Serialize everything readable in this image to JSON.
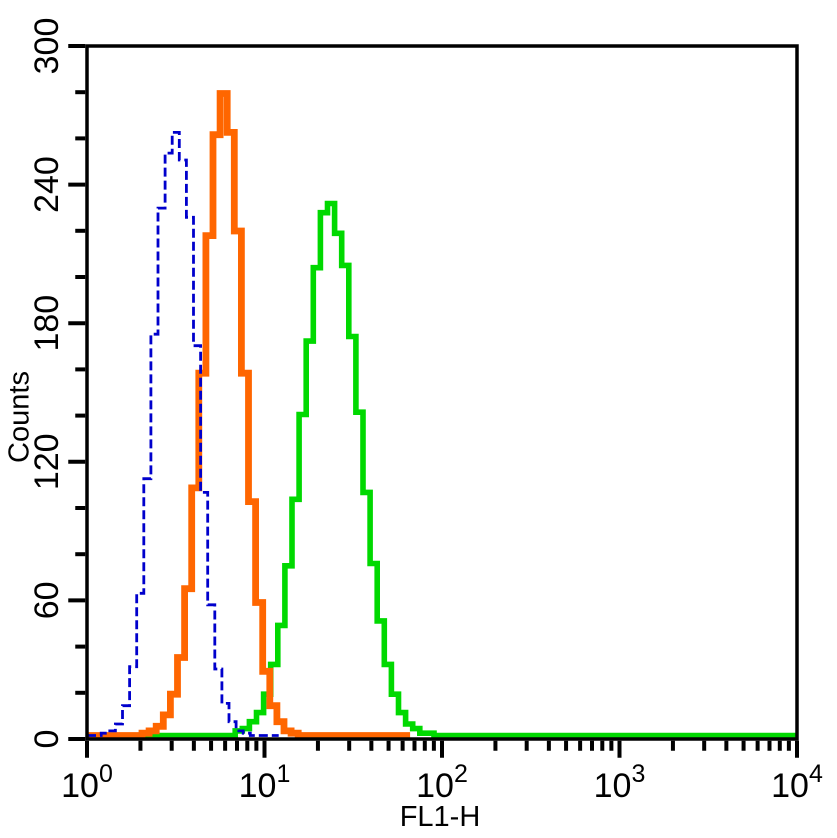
{
  "figure": {
    "kind": "flow-cytometry-histogram-overlay",
    "background": "#ffffff",
    "axis_color": "#000000"
  },
  "chart_data": {
    "type": "area",
    "subtype": "step-histogram-overlay",
    "title": "",
    "xlabel": "FL1-H",
    "ylabel": "Counts",
    "x_scale": "log10",
    "x_range": [
      1,
      10000
    ],
    "x_range_log": [
      0,
      4
    ],
    "ylim": [
      0,
      300
    ],
    "y_major_ticks": [
      0,
      60,
      120,
      180,
      240,
      300
    ],
    "y_minor_tick_step": 20,
    "x_major_exponents": [
      0,
      1,
      2,
      3,
      4
    ],
    "x_tick_label_base": "10",
    "x_minor_ticks_per_decade": [
      2,
      3,
      4,
      5,
      6,
      7,
      8,
      9
    ],
    "grid": false,
    "legend": "none",
    "peaks_summary": [
      {
        "series": "blue-dashed",
        "peak_x": 3.2,
        "peak_counts": 263
      },
      {
        "series": "orange",
        "peak_x": 5.9,
        "peak_counts": 280
      },
      {
        "series": "green",
        "peak_x": 23.7,
        "peak_counts": 232
      }
    ],
    "series": [
      {
        "name": "green",
        "color": "#00d900",
        "line_width": 5.6,
        "dash": null,
        "bin_width_log": 0.04,
        "bins_start_log": 0.855,
        "baseline_log": [
          0,
          4.0
        ],
        "counts": [
          2,
          3,
          6,
          10,
          18,
          31,
          48,
          74,
          103,
          140,
          172,
          204,
          228,
          232,
          219,
          205,
          174,
          141,
          106,
          75,
          50,
          31,
          18,
          10,
          5,
          3,
          1,
          1
        ]
      },
      {
        "name": "orange",
        "color": "#ff6600",
        "line_width": 6.8,
        "dash": null,
        "bin_width_log": 0.04,
        "bins_start_log": 0.33,
        "baseline_log": [
          0,
          1.82
        ],
        "counts": [
          1,
          2,
          4,
          9,
          18,
          34,
          64,
          108,
          158,
          218,
          262,
          280,
          263,
          220,
          158,
          102,
          58,
          28,
          13,
          6,
          2,
          1
        ]
      },
      {
        "name": "blue-dashed",
        "color": "#0000cc",
        "line_width": 2.8,
        "dash": [
          9,
          4
        ],
        "bin_width_log": 0.04,
        "bins_start_log": 0.1,
        "baseline_log": [
          0,
          1.08
        ],
        "counts": [
          1,
          2,
          5,
          13,
          30,
          62,
          112,
          175,
          230,
          254,
          263,
          251,
          226,
          170,
          106,
          57,
          29,
          14,
          6,
          2,
          1
        ]
      }
    ]
  }
}
